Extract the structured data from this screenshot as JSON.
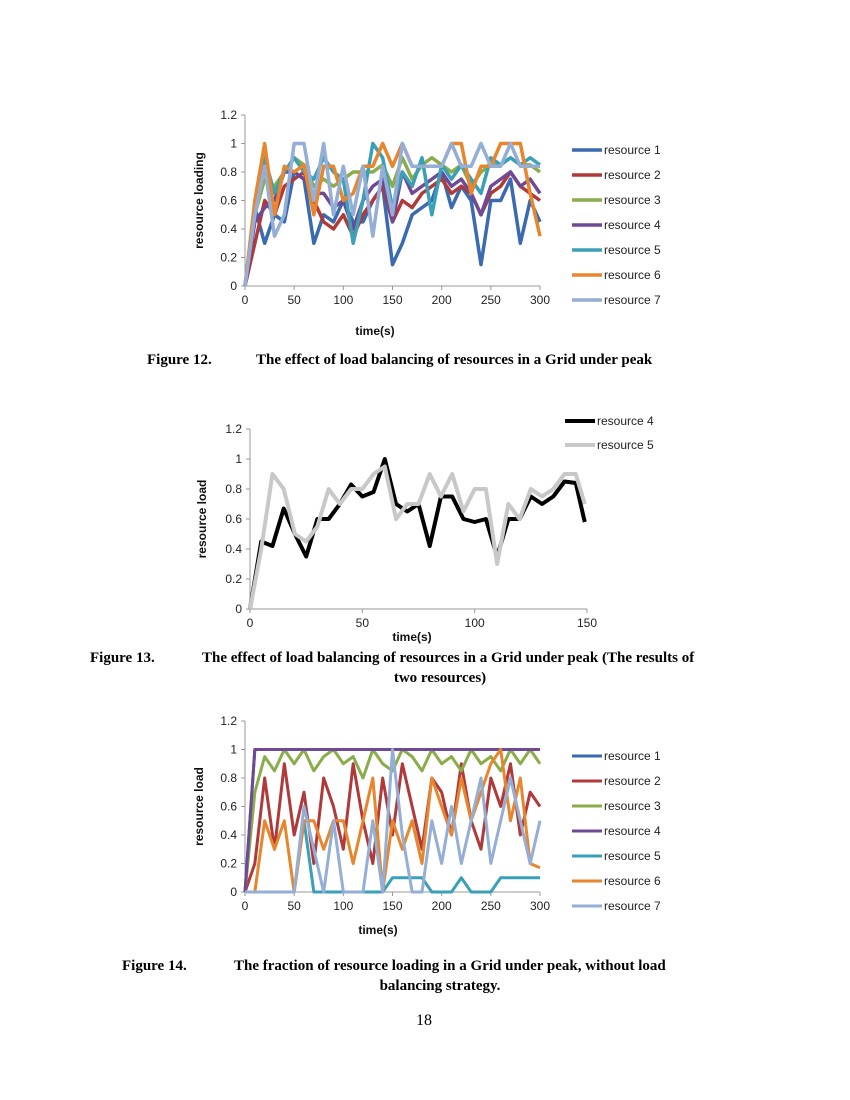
{
  "page_number": "18",
  "figures": [
    {
      "label": "Figure 12.",
      "caption": "The effect of load balancing of resources in a Grid under peak"
    },
    {
      "label": "Figure 13.",
      "caption_line1": "The effect of load balancing of resources in a Grid under peak (The results of",
      "caption_line2": "two resources)"
    },
    {
      "label": "Figure 14.",
      "caption_line1": "The fraction of resource loading in a Grid under peak, without load",
      "caption_line2": "balancing strategy."
    }
  ],
  "chart_data": [
    {
      "type": "line",
      "xlabel": "time(s)",
      "ylabel": "resource loading",
      "xlim": [
        0,
        300
      ],
      "ylim": [
        0,
        1.2
      ],
      "xticks": [
        "0",
        "50",
        "100",
        "150",
        "200",
        "250",
        "300"
      ],
      "yticks": [
        "0",
        "0.2",
        "0.4",
        "0.6",
        "0.8",
        "1",
        "1.2"
      ],
      "legend": "right",
      "grid": false,
      "x": [
        0,
        10,
        20,
        30,
        40,
        50,
        60,
        70,
        80,
        90,
        100,
        110,
        120,
        130,
        140,
        150,
        160,
        170,
        180,
        190,
        200,
        210,
        220,
        230,
        240,
        250,
        260,
        270,
        280,
        290,
        300
      ],
      "series": [
        {
          "name": "resource 1",
          "color": "#3a6ab0",
          "values": [
            0,
            0.55,
            0.3,
            0.5,
            0.45,
            0.8,
            0.75,
            0.3,
            0.5,
            0.45,
            0.6,
            0.45,
            0.45,
            0.6,
            0.7,
            0.15,
            0.3,
            0.5,
            0.55,
            0.6,
            0.8,
            0.55,
            0.7,
            0.6,
            0.15,
            0.6,
            0.6,
            0.75,
            0.3,
            0.6,
            0.45
          ]
        },
        {
          "name": "resource 2",
          "color": "#b03a3a",
          "values": [
            0,
            0.3,
            0.6,
            0.5,
            0.7,
            0.75,
            0.8,
            0.6,
            0.45,
            0.4,
            0.5,
            0.35,
            0.5,
            0.6,
            0.7,
            0.45,
            0.6,
            0.55,
            0.65,
            0.7,
            0.75,
            0.65,
            0.7,
            0.65,
            0.5,
            0.65,
            0.7,
            0.8,
            0.7,
            0.65,
            0.6
          ]
        },
        {
          "name": "resource 3",
          "color": "#8aac4a",
          "values": [
            0,
            0.5,
            0.75,
            0.7,
            0.8,
            0.9,
            0.85,
            0.7,
            0.75,
            0.7,
            0.75,
            0.8,
            0.8,
            0.8,
            0.85,
            0.7,
            0.9,
            0.75,
            0.85,
            0.9,
            0.85,
            0.8,
            0.85,
            0.7,
            0.8,
            0.85,
            0.85,
            0.9,
            0.85,
            0.85,
            0.8
          ]
        },
        {
          "name": "resource 4",
          "color": "#6e4a96",
          "values": [
            0,
            0.45,
            0.55,
            0.6,
            0.8,
            0.8,
            0.75,
            0.65,
            0.65,
            0.55,
            0.6,
            0.4,
            0.6,
            0.7,
            0.75,
            0.45,
            0.8,
            0.65,
            0.7,
            0.75,
            0.8,
            0.7,
            0.75,
            0.65,
            0.5,
            0.7,
            0.75,
            0.8,
            0.7,
            0.75,
            0.65
          ]
        },
        {
          "name": "resource 5",
          "color": "#3aa0b8",
          "values": [
            0,
            0.55,
            0.9,
            0.65,
            0.8,
            0.9,
            0.8,
            0.75,
            0.9,
            0.8,
            0.75,
            0.3,
            0.6,
            1.0,
            0.9,
            0.55,
            0.8,
            0.7,
            0.9,
            0.5,
            0.85,
            0.75,
            0.85,
            0.75,
            0.65,
            0.9,
            0.85,
            0.9,
            0.85,
            0.9,
            0.85
          ]
        },
        {
          "name": "resource 6",
          "color": "#e8862e",
          "values": [
            0,
            0.6,
            1.0,
            0.5,
            0.84,
            0.8,
            0.85,
            0.5,
            0.84,
            0.84,
            0.6,
            0.65,
            0.84,
            0.84,
            1.0,
            0.84,
            1.0,
            0.84,
            0.84,
            0.84,
            0.84,
            1.0,
            1.0,
            0.65,
            0.84,
            0.84,
            1.0,
            1.0,
            1.0,
            0.65,
            0.35
          ]
        },
        {
          "name": "resource 7",
          "color": "#94aed6",
          "values": [
            0,
            0.5,
            0.84,
            0.35,
            0.5,
            1.0,
            1.0,
            0.6,
            1.0,
            0.5,
            0.84,
            0.5,
            0.84,
            0.35,
            0.84,
            0.5,
            1.0,
            0.84,
            0.84,
            0.84,
            0.84,
            1.0,
            0.84,
            0.84,
            1.0,
            0.84,
            0.84,
            1.0,
            0.84,
            0.84,
            0.84
          ]
        }
      ]
    },
    {
      "type": "line",
      "xlabel": "time(s)",
      "ylabel": "resource load",
      "xlim": [
        0,
        150
      ],
      "ylim": [
        0,
        1.2
      ],
      "xticks": [
        "0",
        "50",
        "100",
        "150"
      ],
      "yticks": [
        "0",
        "0.2",
        "0.4",
        "0.6",
        "0.8",
        "1",
        "1.2"
      ],
      "legend": "top-right",
      "grid": false,
      "x": [
        0,
        5,
        10,
        15,
        20,
        25,
        30,
        35,
        40,
        45,
        50,
        55,
        60,
        65,
        70,
        75,
        80,
        85,
        90,
        95,
        100,
        105,
        110,
        115,
        120,
        125,
        130,
        135,
        140,
        145,
        149
      ],
      "series": [
        {
          "name": "resource 4",
          "color": "#000000",
          "values": [
            0,
            0.45,
            0.42,
            0.67,
            0.5,
            0.35,
            0.6,
            0.6,
            0.7,
            0.83,
            0.75,
            0.78,
            1.0,
            0.7,
            0.65,
            0.7,
            0.42,
            0.75,
            0.75,
            0.6,
            0.58,
            0.6,
            0.35,
            0.6,
            0.6,
            0.75,
            0.7,
            0.75,
            0.85,
            0.84,
            0.58
          ]
        },
        {
          "name": "resource 5",
          "color": "#c8c8c8",
          "values": [
            0,
            0.4,
            0.9,
            0.8,
            0.5,
            0.45,
            0.55,
            0.8,
            0.7,
            0.8,
            0.8,
            0.9,
            0.95,
            0.6,
            0.7,
            0.7,
            0.9,
            0.75,
            0.9,
            0.65,
            0.8,
            0.8,
            0.3,
            0.7,
            0.6,
            0.8,
            0.75,
            0.8,
            0.9,
            0.9,
            0.7
          ]
        }
      ]
    },
    {
      "type": "line",
      "xlabel": "time(s)",
      "ylabel": "resource load",
      "xlim": [
        0,
        300
      ],
      "ylim": [
        0,
        1.2
      ],
      "xticks": [
        "0",
        "50",
        "100",
        "150",
        "200",
        "250",
        "300"
      ],
      "yticks": [
        "0",
        "0.2",
        "0.4",
        "0.6",
        "0.8",
        "1",
        "1.2"
      ],
      "legend": "right",
      "grid": false,
      "x": [
        0,
        10,
        20,
        30,
        40,
        50,
        60,
        70,
        80,
        90,
        100,
        110,
        120,
        130,
        140,
        150,
        160,
        170,
        180,
        190,
        200,
        210,
        220,
        230,
        240,
        250,
        260,
        270,
        280,
        290,
        300
      ],
      "series": [
        {
          "name": "resource 1",
          "color": "#3a6ab0",
          "values": [
            0,
            1,
            1,
            1,
            1,
            1,
            1,
            1,
            1,
            1,
            1,
            1,
            1,
            1,
            1,
            1,
            1,
            1,
            1,
            1,
            1,
            1,
            1,
            1,
            1,
            1,
            1,
            1,
            1,
            1,
            1
          ]
        },
        {
          "name": "resource 2",
          "color": "#b03a3a",
          "values": [
            0,
            0.2,
            0.8,
            0.3,
            0.9,
            0.4,
            0.7,
            0.2,
            0.8,
            0.6,
            0.3,
            0.9,
            0.5,
            0.2,
            0.8,
            0.4,
            0.9,
            0.6,
            0.3,
            0.8,
            0.7,
            0.4,
            0.9,
            0.5,
            0.3,
            0.8,
            0.6,
            0.9,
            0.4,
            0.7,
            0.6
          ]
        },
        {
          "name": "resource 3",
          "color": "#8aac4a",
          "values": [
            0,
            0.7,
            0.95,
            0.85,
            1,
            0.9,
            1,
            0.85,
            0.95,
            1,
            0.9,
            0.95,
            0.8,
            1,
            0.9,
            0.85,
            1,
            0.95,
            0.85,
            1,
            0.9,
            0.95,
            0.85,
            1,
            0.9,
            0.95,
            0.85,
            1,
            0.9,
            1,
            0.9
          ]
        },
        {
          "name": "resource 4",
          "color": "#6e4a96",
          "values": [
            0,
            1,
            1,
            1,
            1,
            1,
            1,
            1,
            1,
            1,
            1,
            1,
            1,
            1,
            1,
            1,
            1,
            1,
            1,
            1,
            1,
            1,
            1,
            1,
            1,
            1,
            1,
            1,
            1,
            1,
            1
          ]
        },
        {
          "name": "resource 5",
          "color": "#3aa0b8",
          "values": [
            0,
            0,
            0,
            0,
            0,
            0,
            0.5,
            0,
            0,
            0,
            0,
            0,
            0,
            0,
            0,
            0.1,
            0.1,
            0.1,
            0.1,
            0,
            0,
            0,
            0.1,
            0,
            0,
            0,
            0.1,
            0.1,
            0.1,
            0.1,
            0.1
          ]
        },
        {
          "name": "resource 6",
          "color": "#e8862e",
          "values": [
            0,
            0,
            0.5,
            0.3,
            0.5,
            0,
            0.5,
            0.5,
            0.3,
            0.5,
            0.5,
            0.2,
            0.5,
            0.8,
            0,
            0.5,
            0.3,
            0.5,
            0.2,
            0.8,
            0.6,
            0.4,
            0.8,
            0.5,
            0.7,
            0.9,
            1,
            0.5,
            0.8,
            0.2,
            0.17
          ]
        },
        {
          "name": "resource 7",
          "color": "#94aed6",
          "values": [
            0,
            0,
            0,
            0,
            0,
            0,
            0.6,
            0.3,
            0,
            0.5,
            0,
            0,
            0,
            0.5,
            0,
            1,
            0.4,
            0,
            0,
            0.5,
            0.2,
            0.6,
            0.2,
            0.5,
            0.8,
            0.2,
            0.5,
            0.8,
            0.5,
            0.2,
            0.5
          ]
        }
      ]
    }
  ]
}
